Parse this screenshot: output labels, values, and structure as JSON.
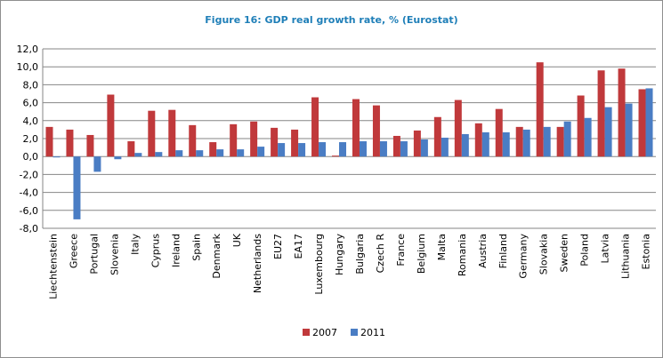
{
  "chart_data": {
    "type": "bar",
    "title": "Figure 16: GDP real growth rate, % (Eurostat)",
    "xlabel": "",
    "ylabel": "",
    "ylim": [
      -8,
      12
    ],
    "yticks": [
      "12,0",
      "10,0",
      "8,0",
      "6,0",
      "4,0",
      "2,0",
      "0,0",
      "-2,0",
      "-4,0",
      "-6,0",
      "-8,0"
    ],
    "grid": true,
    "legend_position": "bottom",
    "categories": [
      "Liechtenstein",
      "Greece",
      "Portugal",
      "Slovenia",
      "Italy",
      "Cyprus",
      "Ireland",
      "Spain",
      "Denmark",
      "UK",
      "Netherlands",
      "EU27",
      "EA17",
      "Luxembourg",
      "Hungary",
      "Bulgaria",
      "Czech R",
      "France",
      "Belgium",
      "Malta",
      "Romania",
      "Austria",
      "Finland",
      "Germany",
      "Slovakia",
      "Sweden",
      "Poland",
      "Latvia",
      "Lithuania",
      "Estonia"
    ],
    "series": [
      {
        "name": "2007",
        "color": "#c0393b",
        "values": [
          3.3,
          3.0,
          2.4,
          6.9,
          1.7,
          5.1,
          5.2,
          3.5,
          1.6,
          3.6,
          3.9,
          3.2,
          3.0,
          6.6,
          0.1,
          6.4,
          5.7,
          2.3,
          2.9,
          4.4,
          6.3,
          3.7,
          5.3,
          3.3,
          10.5,
          3.3,
          6.8,
          9.6,
          9.8,
          7.5
        ]
      },
      {
        "name": "2011",
        "color": "#4a7dc4",
        "values": [
          -0.1,
          -7.0,
          -1.7,
          -0.3,
          0.4,
          0.5,
          0.7,
          0.7,
          0.8,
          0.8,
          1.1,
          1.5,
          1.5,
          1.6,
          1.6,
          1.7,
          1.7,
          1.7,
          1.9,
          2.1,
          2.5,
          2.7,
          2.7,
          3.0,
          3.3,
          3.9,
          4.3,
          5.5,
          5.9,
          7.6
        ]
      }
    ]
  }
}
